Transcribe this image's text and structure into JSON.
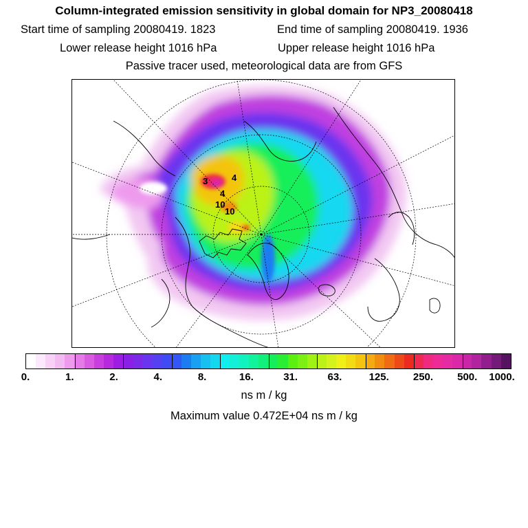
{
  "header": {
    "title": "Column-integrated emission sensitivity in global domain for NP3_20080418",
    "start_time": "Start time of sampling 20080419.  1823",
    "end_time": "End time of sampling 20080419.  1936",
    "lower_release": "Lower release height 1016 hPa",
    "upper_release": "Upper release height 1016 hPa",
    "tracer_info": "Passive tracer used, meteorological data are from GFS"
  },
  "map": {
    "projection": "north polar stereographic",
    "markers": [
      "3",
      "4",
      "4",
      "10",
      "10"
    ]
  },
  "colorbar": {
    "tick_labels": [
      "0.",
      "1.",
      "2.",
      "4.",
      "8.",
      "16.",
      "31.",
      "63.",
      "125.",
      "250.",
      "500.",
      "1000."
    ],
    "units": "ns m / kg",
    "colors": [
      "#ffffff",
      "#fce9fb",
      "#f7d2f6",
      "#f2bbf1",
      "#ee9bee",
      "#e57ae8",
      "#d95be2",
      "#c93ede",
      "#b62adf",
      "#9e1de3",
      "#8a20e6",
      "#7a2ae8",
      "#6a35ee",
      "#5540f2",
      "#3f4bf4",
      "#3257f5",
      "#1c7df2",
      "#1aa0f2",
      "#18c0f2",
      "#14d8f0",
      "#10eef0",
      "#12f0d8",
      "#10f2bf",
      "#10f29b",
      "#10f07a",
      "#14ee5a",
      "#2aee32",
      "#5af010",
      "#7cf010",
      "#a0f214",
      "#bcf218",
      "#d6f21c",
      "#f0f018",
      "#f4dc14",
      "#f4c410",
      "#f4aa10",
      "#f28c10",
      "#f06c14",
      "#ee4a18",
      "#ec2a20",
      "#ee2a50",
      "#f02a7e",
      "#ee2a96",
      "#e62aa2",
      "#da28a8",
      "#c826a6",
      "#b024a0",
      "#921e8e",
      "#741a78",
      "#561460"
    ],
    "divider_every": 5
  },
  "max_value": "Maximum value  0.472E+04 ns m / kg"
}
